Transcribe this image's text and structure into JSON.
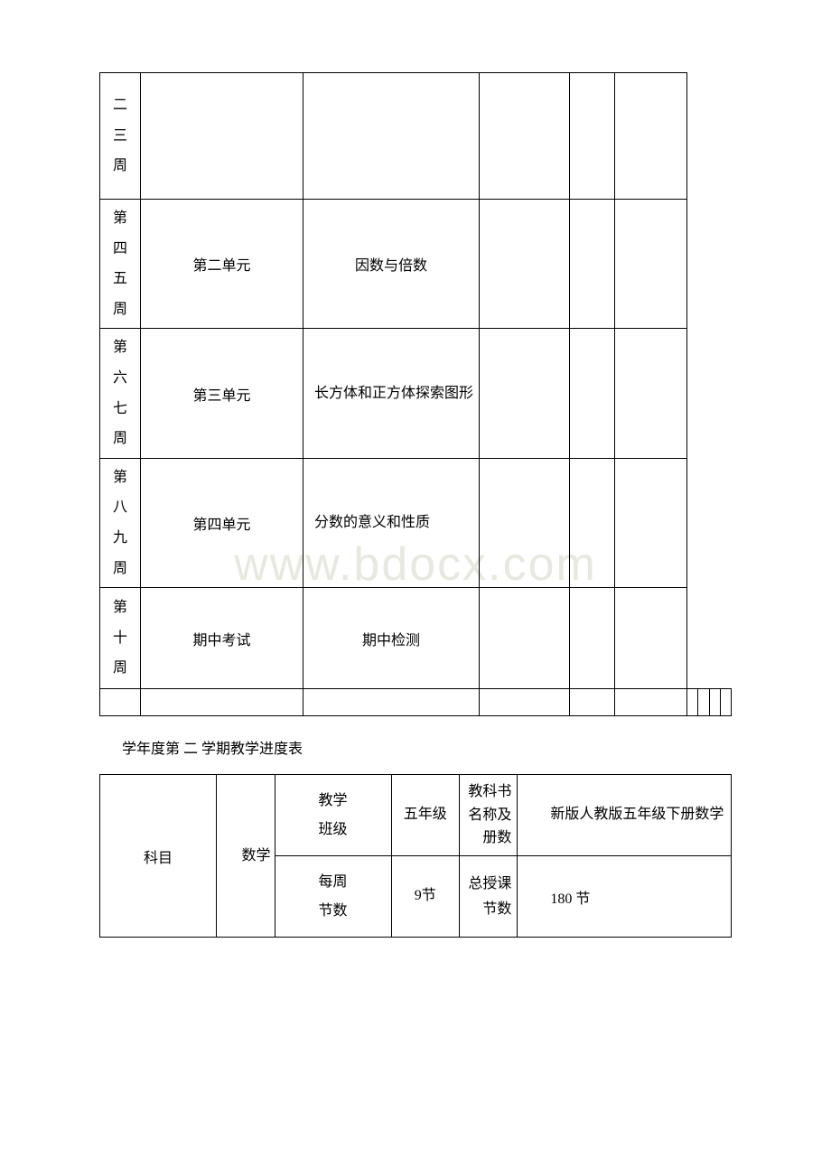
{
  "watermark": "www.bdocx.com",
  "table1": {
    "rows": [
      {
        "week": "二三周",
        "unit": "",
        "content": ""
      },
      {
        "week": "第四五周",
        "unit": "第二单元",
        "content": "因数与倍数"
      },
      {
        "week": "第六七周",
        "unit": "第三单元",
        "content": "长方体和正方体探索图形"
      },
      {
        "week": "第八九周",
        "unit": "第四单元",
        "content": "分数的意义和性质"
      },
      {
        "week": "第十周",
        "unit": "期中考试",
        "content": "期中检测"
      }
    ]
  },
  "section_title": "学年度第 二 学期教学进度表",
  "table2": {
    "subject_label": "科目",
    "subject_value": "数学",
    "class_label_1": "教学",
    "class_label_2": "班级",
    "class_value": "五年级",
    "book_label": "教科书名称及册数",
    "book_value": "新版人教版五年级下册数学",
    "weekly_label_1": "每周",
    "weekly_label_2": "节数",
    "weekly_value": "9节",
    "total_label": "总授课节数",
    "total_value": "180 节"
  }
}
